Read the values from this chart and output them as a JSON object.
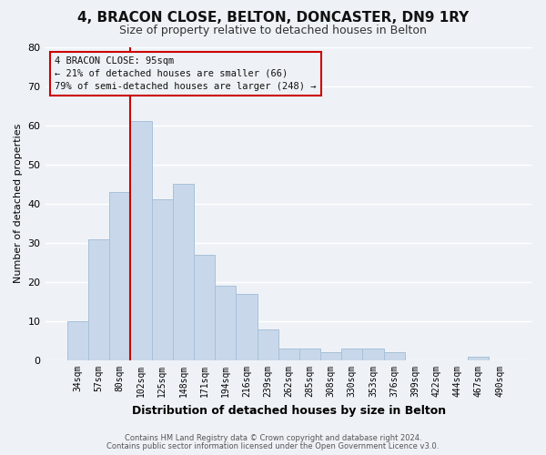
{
  "title": "4, BRACON CLOSE, BELTON, DONCASTER, DN9 1RY",
  "subtitle": "Size of property relative to detached houses in Belton",
  "xlabel": "Distribution of detached houses by size in Belton",
  "ylabel": "Number of detached properties",
  "footer_line1": "Contains HM Land Registry data © Crown copyright and database right 2024.",
  "footer_line2": "Contains public sector information licensed under the Open Government Licence v3.0.",
  "bin_labels": [
    "34sqm",
    "57sqm",
    "80sqm",
    "102sqm",
    "125sqm",
    "148sqm",
    "171sqm",
    "194sqm",
    "216sqm",
    "239sqm",
    "262sqm",
    "285sqm",
    "308sqm",
    "330sqm",
    "353sqm",
    "376sqm",
    "399sqm",
    "422sqm",
    "444sqm",
    "467sqm",
    "490sqm"
  ],
  "bar_heights": [
    10,
    31,
    43,
    61,
    41,
    45,
    27,
    19,
    17,
    8,
    3,
    3,
    2,
    3,
    3,
    2,
    0,
    0,
    0,
    1,
    0
  ],
  "bar_color": "#c8d8ea",
  "bar_edge_color": "#a8c0d8",
  "vline_x_index": 3,
  "vline_color": "#cc0000",
  "ylim": [
    0,
    80
  ],
  "yticks": [
    0,
    10,
    20,
    30,
    40,
    50,
    60,
    70,
    80
  ],
  "annotation_title": "4 BRACON CLOSE: 95sqm",
  "annotation_line1": "← 21% of detached houses are smaller (66)",
  "annotation_line2": "79% of semi-detached houses are larger (248) →",
  "background_color": "#eef2f7",
  "grid_color": "#ffffff",
  "title_fontsize": 11,
  "subtitle_fontsize": 9,
  "ylabel_fontsize": 8,
  "xlabel_fontsize": 9,
  "tick_fontsize": 7,
  "annot_fontsize": 7.5,
  "footer_fontsize": 6
}
